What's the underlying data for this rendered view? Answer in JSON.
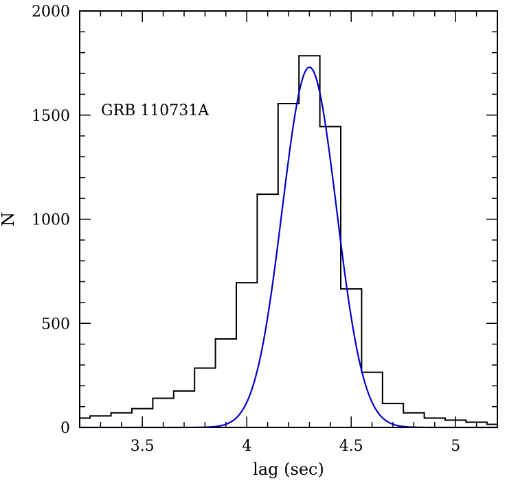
{
  "chart_data": {
    "type": "bar",
    "title": "",
    "annotation": "GRB 110731A",
    "xlabel": "lag (sec)",
    "ylabel": "N",
    "xlim": [
      3.2,
      5.2
    ],
    "ylim": [
      0,
      2000
    ],
    "x_ticks": [
      {
        "value": 3.5,
        "label": "3.5"
      },
      {
        "value": 4,
        "label": "4"
      },
      {
        "value": 4.5,
        "label": "4.5"
      },
      {
        "value": 5,
        "label": "5"
      }
    ],
    "y_ticks": [
      {
        "value": 0,
        "label": "0"
      },
      {
        "value": 500,
        "label": "500"
      },
      {
        "value": 1000,
        "label": "1000"
      },
      {
        "value": 1500,
        "label": "1500"
      },
      {
        "value": 2000,
        "label": "2000"
      }
    ],
    "grid": false,
    "series": [
      {
        "kind": "histogram",
        "color": "#000000",
        "bin_edges": [
          3.2,
          3.25,
          3.35,
          3.45,
          3.55,
          3.65,
          3.75,
          3.85,
          3.95,
          4.05,
          4.15,
          4.25,
          4.35,
          4.45,
          4.55,
          4.65,
          4.75,
          4.85,
          4.95,
          5.05,
          5.15,
          5.2
        ],
        "counts": [
          45,
          55,
          70,
          90,
          140,
          175,
          285,
          425,
          695,
          1120,
          1555,
          1785,
          1445,
          665,
          265,
          115,
          70,
          45,
          35,
          25,
          15
        ]
      },
      {
        "kind": "gaussian-fit",
        "color": "#0000cc",
        "peak": 1730,
        "center": 4.3,
        "sigma": 0.13
      }
    ]
  }
}
